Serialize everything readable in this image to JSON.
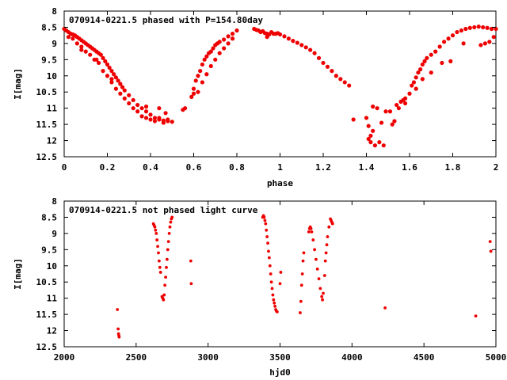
{
  "chart_data": [
    {
      "type": "scatter",
      "title": "070914-0221.5 phased with P=154.80day",
      "xlabel": "phase",
      "ylabel": "I[mag]",
      "xlim": [
        0,
        2
      ],
      "ylim": [
        12.5,
        8
      ],
      "y_reversed": true,
      "grid": false,
      "marker": "filled-circle",
      "color": "#ee0000",
      "xticks": [
        0,
        0.2,
        0.4,
        0.6,
        0.8,
        1,
        1.2,
        1.4,
        1.6,
        1.8,
        2
      ],
      "xtick_labels": [
        "0",
        "0.2",
        "0.4",
        "0.6",
        "0.8",
        "1",
        "1.2",
        "1.4",
        "1.6",
        "1.8",
        "2"
      ],
      "yticks": [
        8,
        8.5,
        9,
        9.5,
        10,
        10.5,
        11,
        11.5,
        12,
        12.5
      ],
      "ytick_labels": [
        "8",
        "8.5",
        "9",
        "9.5",
        "10",
        "10.5",
        "11",
        "11.5",
        "12",
        "12.5"
      ],
      "points": [
        [
          0.0,
          8.55
        ],
        [
          0.01,
          8.6
        ],
        [
          0.02,
          8.65
        ],
        [
          0.03,
          8.7
        ],
        [
          0.04,
          8.72
        ],
        [
          0.05,
          8.75
        ],
        [
          0.06,
          8.8
        ],
        [
          0.07,
          8.85
        ],
        [
          0.08,
          8.9
        ],
        [
          0.09,
          8.95
        ],
        [
          0.1,
          9.0
        ],
        [
          0.11,
          9.05
        ],
        [
          0.12,
          9.1
        ],
        [
          0.13,
          9.15
        ],
        [
          0.14,
          9.2
        ],
        [
          0.15,
          9.25
        ],
        [
          0.16,
          9.3
        ],
        [
          0.17,
          9.35
        ],
        [
          0.18,
          9.45
        ],
        [
          0.19,
          9.55
        ],
        [
          0.2,
          9.65
        ],
        [
          0.21,
          9.75
        ],
        [
          0.22,
          9.85
        ],
        [
          0.23,
          9.95
        ],
        [
          0.24,
          10.05
        ],
        [
          0.25,
          10.15
        ],
        [
          0.26,
          10.25
        ],
        [
          0.27,
          10.35
        ],
        [
          0.28,
          10.45
        ],
        [
          0.3,
          10.6
        ],
        [
          0.32,
          10.75
        ],
        [
          0.34,
          10.9
        ],
        [
          0.36,
          11.0
        ],
        [
          0.38,
          11.1
        ],
        [
          0.4,
          11.2
        ],
        [
          0.42,
          11.3
        ],
        [
          0.44,
          11.35
        ],
        [
          0.46,
          11.38
        ],
        [
          0.48,
          11.4
        ],
        [
          0.5,
          11.42
        ],
        [
          0.02,
          8.8
        ],
        [
          0.04,
          8.85
        ],
        [
          0.06,
          9.0
        ],
        [
          0.08,
          9.2
        ],
        [
          0.1,
          9.25
        ],
        [
          0.12,
          9.35
        ],
        [
          0.14,
          9.5
        ],
        [
          0.16,
          9.6
        ],
        [
          0.18,
          9.85
        ],
        [
          0.2,
          10.0
        ],
        [
          0.22,
          10.2
        ],
        [
          0.24,
          10.4
        ],
        [
          0.26,
          10.55
        ],
        [
          0.28,
          10.7
        ],
        [
          0.3,
          10.85
        ],
        [
          0.32,
          11.0
        ],
        [
          0.34,
          11.1
        ],
        [
          0.36,
          11.25
        ],
        [
          0.38,
          11.3
        ],
        [
          0.4,
          11.35
        ],
        [
          0.42,
          11.4
        ],
        [
          0.44,
          11.3
        ],
        [
          0.46,
          11.45
        ],
        [
          0.48,
          11.35
        ],
        [
          0.08,
          9.1
        ],
        [
          0.15,
          9.5
        ],
        [
          0.22,
          10.1
        ],
        [
          0.38,
          10.95
        ],
        [
          0.44,
          11.0
        ],
        [
          0.47,
          11.15
        ],
        [
          0.55,
          11.05
        ],
        [
          0.56,
          11.0
        ],
        [
          0.59,
          10.65
        ],
        [
          0.6,
          10.4
        ],
        [
          0.61,
          10.15
        ],
        [
          0.62,
          10.0
        ],
        [
          0.63,
          9.85
        ],
        [
          0.64,
          9.65
        ],
        [
          0.65,
          9.5
        ],
        [
          0.66,
          9.4
        ],
        [
          0.67,
          9.3
        ],
        [
          0.68,
          9.25
        ],
        [
          0.69,
          9.15
        ],
        [
          0.7,
          9.05
        ],
        [
          0.71,
          9.0
        ],
        [
          0.72,
          8.95
        ],
        [
          0.74,
          8.88
        ],
        [
          0.76,
          8.78
        ],
        [
          0.78,
          8.7
        ],
        [
          0.8,
          8.6
        ],
        [
          0.6,
          10.55
        ],
        [
          0.62,
          10.5
        ],
        [
          0.64,
          10.2
        ],
        [
          0.66,
          9.95
        ],
        [
          0.68,
          9.7
        ],
        [
          0.7,
          9.5
        ],
        [
          0.72,
          9.3
        ],
        [
          0.74,
          9.15
        ],
        [
          0.76,
          9.0
        ],
        [
          0.78,
          8.85
        ],
        [
          0.88,
          8.55
        ],
        [
          0.89,
          8.58
        ],
        [
          0.9,
          8.6
        ],
        [
          0.91,
          8.65
        ],
        [
          0.92,
          8.62
        ],
        [
          0.93,
          8.68
        ],
        [
          0.94,
          8.7
        ],
        [
          0.95,
          8.72
        ],
        [
          0.96,
          8.65
        ],
        [
          0.97,
          8.7
        ],
        [
          0.98,
          8.7
        ],
        [
          0.99,
          8.68
        ],
        [
          1.0,
          8.72
        ],
        [
          1.02,
          8.78
        ],
        [
          1.04,
          8.85
        ],
        [
          1.06,
          8.92
        ],
        [
          1.08,
          8.98
        ],
        [
          1.1,
          9.05
        ],
        [
          1.12,
          9.12
        ],
        [
          1.14,
          9.2
        ],
        [
          1.16,
          9.3
        ],
        [
          1.18,
          9.45
        ],
        [
          1.2,
          9.6
        ],
        [
          1.22,
          9.72
        ],
        [
          1.24,
          9.85
        ],
        [
          1.26,
          10.0
        ],
        [
          1.28,
          10.1
        ],
        [
          1.3,
          10.2
        ],
        [
          1.32,
          10.3
        ],
        [
          0.94,
          8.8
        ],
        [
          1.34,
          11.35
        ],
        [
          1.4,
          11.3
        ],
        [
          1.41,
          11.55
        ],
        [
          1.41,
          11.95
        ],
        [
          1.42,
          12.05
        ],
        [
          1.42,
          11.85
        ],
        [
          1.43,
          11.7
        ],
        [
          1.44,
          12.15
        ],
        [
          1.46,
          12.05
        ],
        [
          1.47,
          11.45
        ],
        [
          1.48,
          12.15
        ],
        [
          1.43,
          10.95
        ],
        [
          1.45,
          11.0
        ],
        [
          1.49,
          11.1
        ],
        [
          1.51,
          11.1
        ],
        [
          1.52,
          11.5
        ],
        [
          1.53,
          11.4
        ],
        [
          1.54,
          10.9
        ],
        [
          1.56,
          10.8
        ],
        [
          1.58,
          10.7
        ],
        [
          1.6,
          10.55
        ],
        [
          1.61,
          10.3
        ],
        [
          1.62,
          10.2
        ],
        [
          1.63,
          10.05
        ],
        [
          1.64,
          9.9
        ],
        [
          1.65,
          9.8
        ],
        [
          1.66,
          9.65
        ],
        [
          1.67,
          9.55
        ],
        [
          1.68,
          9.45
        ],
        [
          1.7,
          9.35
        ],
        [
          1.72,
          9.25
        ],
        [
          1.74,
          9.1
        ],
        [
          1.76,
          8.95
        ],
        [
          1.78,
          8.85
        ],
        [
          1.8,
          8.75
        ],
        [
          1.82,
          8.65
        ],
        [
          1.84,
          8.6
        ],
        [
          1.86,
          8.55
        ],
        [
          1.88,
          8.52
        ],
        [
          1.9,
          8.5
        ],
        [
          1.92,
          8.48
        ],
        [
          1.94,
          8.5
        ],
        [
          1.96,
          8.52
        ],
        [
          1.98,
          8.55
        ],
        [
          2.0,
          8.55
        ],
        [
          1.55,
          11.0
        ],
        [
          1.58,
          10.85
        ],
        [
          1.63,
          10.4
        ],
        [
          1.7,
          9.9
        ],
        [
          1.75,
          9.6
        ],
        [
          1.79,
          9.55
        ],
        [
          1.85,
          9.0
        ],
        [
          1.93,
          9.05
        ],
        [
          1.95,
          9.0
        ],
        [
          1.97,
          8.95
        ],
        [
          1.99,
          8.8
        ],
        [
          1.57,
          10.75
        ],
        [
          1.66,
          10.1
        ]
      ]
    },
    {
      "type": "scatter",
      "title": "070914-0221.5 not phased light curve",
      "xlabel": "hjd0",
      "ylabel": "I[mag]",
      "xlim": [
        2000,
        5000
      ],
      "ylim": [
        12.5,
        8
      ],
      "y_reversed": true,
      "grid": false,
      "marker": "filled-circle",
      "color": "#ee0000",
      "xticks": [
        2000,
        2500,
        3000,
        3500,
        4000,
        4500,
        5000
      ],
      "xtick_labels": [
        "2000",
        "2500",
        "3000",
        "3500",
        "4000",
        "4500",
        "5000"
      ],
      "yticks": [
        8,
        8.5,
        9,
        9.5,
        10,
        10.5,
        11,
        11.5,
        12,
        12.5
      ],
      "ytick_labels": [
        "8",
        "8.5",
        "9",
        "9.5",
        "10",
        "10.5",
        "11",
        "11.5",
        "12",
        "12.5"
      ],
      "points": [
        [
          2370,
          11.35
        ],
        [
          2375,
          11.95
        ],
        [
          2378,
          12.1
        ],
        [
          2380,
          12.15
        ],
        [
          2382,
          12.2
        ],
        [
          2620,
          8.7
        ],
        [
          2625,
          8.75
        ],
        [
          2630,
          8.8
        ],
        [
          2635,
          8.9
        ],
        [
          2640,
          9.0
        ],
        [
          2645,
          9.2
        ],
        [
          2650,
          9.4
        ],
        [
          2655,
          9.6
        ],
        [
          2660,
          9.85
        ],
        [
          2665,
          10.05
        ],
        [
          2670,
          10.2
        ],
        [
          2680,
          10.95
        ],
        [
          2685,
          11.0
        ],
        [
          2690,
          11.05
        ],
        [
          2695,
          10.9
        ],
        [
          2700,
          10.6
        ],
        [
          2705,
          10.35
        ],
        [
          2710,
          10.05
        ],
        [
          2715,
          9.8
        ],
        [
          2720,
          9.5
        ],
        [
          2725,
          9.25
        ],
        [
          2730,
          9.0
        ],
        [
          2735,
          8.8
        ],
        [
          2740,
          8.65
        ],
        [
          2745,
          8.55
        ],
        [
          2750,
          8.5
        ],
        [
          2880,
          9.85
        ],
        [
          2883,
          10.55
        ],
        [
          3380,
          8.5
        ],
        [
          3385,
          8.45
        ],
        [
          3390,
          8.5
        ],
        [
          3395,
          8.6
        ],
        [
          3400,
          8.7
        ],
        [
          3405,
          8.9
        ],
        [
          3410,
          9.1
        ],
        [
          3415,
          9.3
        ],
        [
          3420,
          9.55
        ],
        [
          3425,
          9.75
        ],
        [
          3430,
          10.0
        ],
        [
          3435,
          10.25
        ],
        [
          3440,
          10.5
        ],
        [
          3445,
          10.7
        ],
        [
          3450,
          10.9
        ],
        [
          3455,
          11.05
        ],
        [
          3460,
          11.15
        ],
        [
          3465,
          11.25
        ],
        [
          3470,
          11.35
        ],
        [
          3475,
          11.4
        ],
        [
          3480,
          11.42
        ],
        [
          3500,
          10.55
        ],
        [
          3505,
          10.2
        ],
        [
          3640,
          11.45
        ],
        [
          3645,
          11.1
        ],
        [
          3650,
          10.6
        ],
        [
          3655,
          10.25
        ],
        [
          3660,
          9.85
        ],
        [
          3665,
          9.6
        ],
        [
          3700,
          8.95
        ],
        [
          3705,
          8.85
        ],
        [
          3710,
          8.8
        ],
        [
          3715,
          8.85
        ],
        [
          3720,
          8.95
        ],
        [
          3730,
          9.2
        ],
        [
          3740,
          9.5
        ],
        [
          3750,
          9.8
        ],
        [
          3760,
          10.1
        ],
        [
          3770,
          10.4
        ],
        [
          3780,
          10.7
        ],
        [
          3790,
          10.95
        ],
        [
          3795,
          11.05
        ],
        [
          3800,
          10.85
        ],
        [
          3810,
          10.3
        ],
        [
          3815,
          9.85
        ],
        [
          3820,
          9.6
        ],
        [
          3825,
          9.35
        ],
        [
          3830,
          9.1
        ],
        [
          3840,
          8.8
        ],
        [
          3850,
          8.55
        ],
        [
          3855,
          8.6
        ],
        [
          3860,
          8.65
        ],
        [
          3865,
          8.7
        ],
        [
          4230,
          11.3
        ],
        [
          4860,
          11.55
        ],
        [
          4960,
          9.25
        ],
        [
          4965,
          9.55
        ]
      ]
    }
  ]
}
